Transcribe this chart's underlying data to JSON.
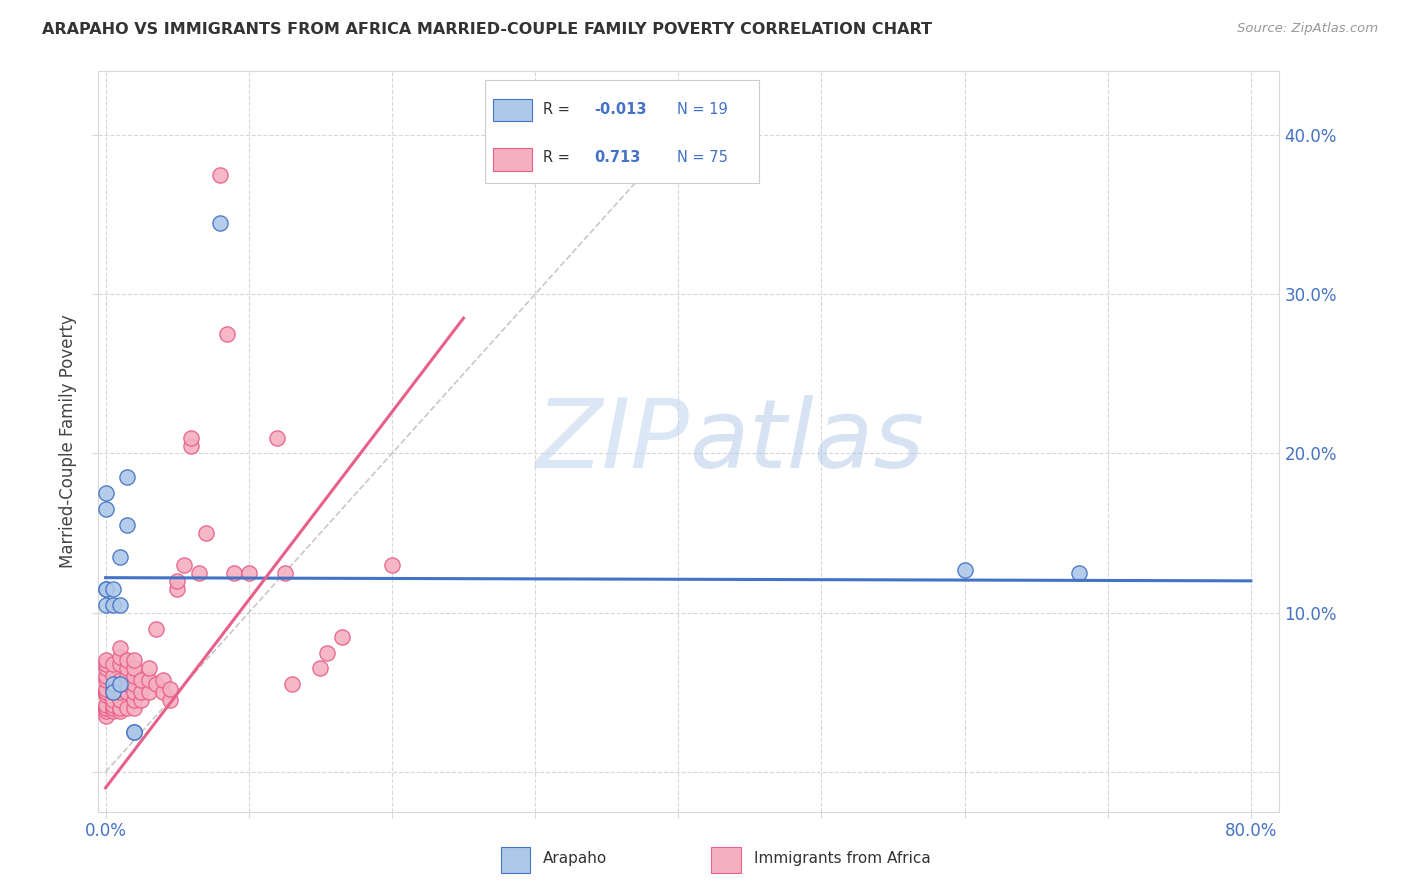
{
  "title": "ARAPAHO VS IMMIGRANTS FROM AFRICA MARRIED-COUPLE FAMILY POVERTY CORRELATION CHART",
  "source": "Source: ZipAtlas.com",
  "ylabel_label": "Married-Couple Family Poverty",
  "xlim": [
    -0.005,
    0.82
  ],
  "ylim": [
    -0.025,
    0.44
  ],
  "xticks": [
    0.0,
    0.8
  ],
  "xticklabels": [
    "0.0%",
    "80.0%"
  ],
  "yticks": [
    0.0,
    0.1,
    0.2,
    0.3,
    0.4
  ],
  "yticklabels": [
    "",
    "10.0%",
    "20.0%",
    "30.0%",
    "40.0%"
  ],
  "legend_labels": [
    "Arapaho",
    "Immigrants from Africa"
  ],
  "arapaho_R": "-0.013",
  "arapaho_N": "19",
  "africa_R": "0.713",
  "africa_N": "75",
  "arapaho_color": "#adc8e8",
  "africa_color": "#f5b0c0",
  "arapaho_line_color": "#4472c4",
  "africa_line_color": "#e8608a",
  "diagonal_color": "#c8c8c8",
  "watermark_zip": "ZIP",
  "watermark_atlas": "atlas",
  "background_color": "#ffffff",
  "grid_color": "#d8d8d8",
  "arapaho_scatter": [
    [
      0.0,
      0.115
    ],
    [
      0.0,
      0.175
    ],
    [
      0.0,
      0.165
    ],
    [
      0.0,
      0.115
    ],
    [
      0.0,
      0.105
    ],
    [
      0.005,
      0.115
    ],
    [
      0.005,
      0.105
    ],
    [
      0.005,
      0.055
    ],
    [
      0.005,
      0.05
    ],
    [
      0.01,
      0.135
    ],
    [
      0.01,
      0.105
    ],
    [
      0.015,
      0.185
    ],
    [
      0.015,
      0.155
    ],
    [
      0.02,
      0.025
    ],
    [
      0.02,
      0.025
    ],
    [
      0.6,
      0.127
    ],
    [
      0.68,
      0.125
    ],
    [
      0.08,
      0.345
    ],
    [
      0.01,
      0.055
    ]
  ],
  "africa_scatter": [
    [
      0.0,
      0.035
    ],
    [
      0.0,
      0.038
    ],
    [
      0.0,
      0.04
    ],
    [
      0.0,
      0.04
    ],
    [
      0.0,
      0.042
    ],
    [
      0.0,
      0.048
    ],
    [
      0.0,
      0.05
    ],
    [
      0.0,
      0.05
    ],
    [
      0.0,
      0.052
    ],
    [
      0.0,
      0.058
    ],
    [
      0.0,
      0.06
    ],
    [
      0.0,
      0.065
    ],
    [
      0.0,
      0.068
    ],
    [
      0.0,
      0.07
    ],
    [
      0.005,
      0.038
    ],
    [
      0.005,
      0.04
    ],
    [
      0.005,
      0.042
    ],
    [
      0.005,
      0.045
    ],
    [
      0.005,
      0.05
    ],
    [
      0.005,
      0.052
    ],
    [
      0.005,
      0.06
    ],
    [
      0.005,
      0.068
    ],
    [
      0.01,
      0.038
    ],
    [
      0.01,
      0.04
    ],
    [
      0.01,
      0.045
    ],
    [
      0.01,
      0.05
    ],
    [
      0.01,
      0.052
    ],
    [
      0.01,
      0.055
    ],
    [
      0.01,
      0.058
    ],
    [
      0.01,
      0.068
    ],
    [
      0.01,
      0.072
    ],
    [
      0.01,
      0.078
    ],
    [
      0.015,
      0.04
    ],
    [
      0.015,
      0.05
    ],
    [
      0.015,
      0.055
    ],
    [
      0.015,
      0.06
    ],
    [
      0.015,
      0.065
    ],
    [
      0.015,
      0.07
    ],
    [
      0.02,
      0.04
    ],
    [
      0.02,
      0.045
    ],
    [
      0.02,
      0.05
    ],
    [
      0.02,
      0.055
    ],
    [
      0.02,
      0.06
    ],
    [
      0.02,
      0.065
    ],
    [
      0.02,
      0.07
    ],
    [
      0.025,
      0.045
    ],
    [
      0.025,
      0.05
    ],
    [
      0.025,
      0.058
    ],
    [
      0.03,
      0.05
    ],
    [
      0.03,
      0.058
    ],
    [
      0.03,
      0.065
    ],
    [
      0.035,
      0.055
    ],
    [
      0.035,
      0.09
    ],
    [
      0.04,
      0.05
    ],
    [
      0.04,
      0.058
    ],
    [
      0.045,
      0.045
    ],
    [
      0.045,
      0.052
    ],
    [
      0.05,
      0.115
    ],
    [
      0.05,
      0.12
    ],
    [
      0.055,
      0.13
    ],
    [
      0.06,
      0.205
    ],
    [
      0.06,
      0.21
    ],
    [
      0.065,
      0.125
    ],
    [
      0.07,
      0.15
    ],
    [
      0.08,
      0.375
    ],
    [
      0.085,
      0.275
    ],
    [
      0.09,
      0.125
    ],
    [
      0.1,
      0.125
    ],
    [
      0.12,
      0.21
    ],
    [
      0.125,
      0.125
    ],
    [
      0.13,
      0.055
    ],
    [
      0.15,
      0.065
    ],
    [
      0.155,
      0.075
    ],
    [
      0.165,
      0.085
    ],
    [
      0.2,
      0.13
    ]
  ],
  "arapaho_trendline": [
    [
      0.0,
      0.122
    ],
    [
      0.8,
      0.12
    ]
  ],
  "africa_trendline": [
    [
      0.0,
      -0.01
    ],
    [
      0.25,
      0.285
    ]
  ],
  "diagonal_line": [
    [
      0.0,
      0.0
    ],
    [
      0.42,
      0.42
    ]
  ]
}
